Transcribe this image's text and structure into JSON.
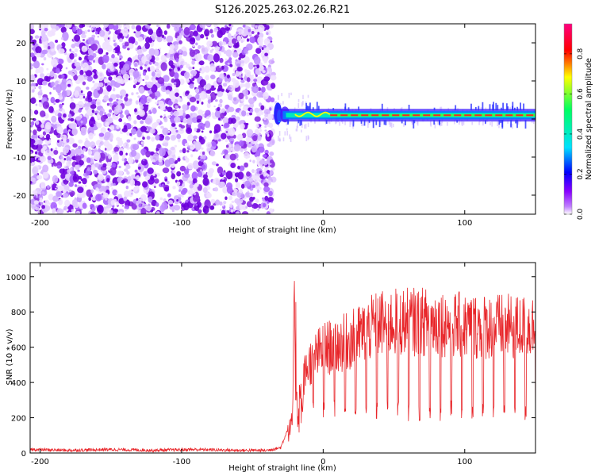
{
  "title": "S126.2025.263.02.26.R21",
  "chart_data": [
    {
      "type": "heatmap",
      "xlabel": "Height of straight line (km)",
      "ylabel": "Frequency (Hz)",
      "xlim": [
        -207,
        150
      ],
      "ylim": [
        -25,
        25
      ],
      "xticks": [
        -200,
        -100,
        0,
        100
      ],
      "yticks": [
        -20,
        -10,
        0,
        10,
        20
      ],
      "noise_region_x": [
        -207,
        -35
      ],
      "transition_x": -33,
      "signal_line_frequency_hz": 1,
      "colorbar": {
        "label": "Normalized spectral amplitude",
        "range": [
          0,
          0.95
        ],
        "ticks": [
          0.0,
          0.2,
          0.4,
          0.6,
          0.8
        ],
        "colormap": [
          "#ffffff",
          "#8800ff",
          "#0000ff",
          "#00e0ff",
          "#00ff60",
          "#ffff00",
          "#ff0000",
          "#ff0080"
        ]
      }
    },
    {
      "type": "line",
      "xlabel": "Height of straight line (km)",
      "ylabel": "SNR (10 * v/v)",
      "xlim": [
        -207,
        150
      ],
      "ylim": [
        0,
        1080
      ],
      "xticks": [
        -200,
        -100,
        0,
        100
      ],
      "yticks": [
        0,
        200,
        400,
        600,
        800,
        1000
      ],
      "color": "#e8262a",
      "series": [
        {
          "name": "SNR",
          "x": [
            -207,
            -180,
            -150,
            -120,
            -90,
            -60,
            -40,
            -30,
            -22,
            -20,
            -18,
            -15,
            -10,
            -5,
            0,
            10,
            20,
            40,
            60,
            80,
            100,
            120,
            140,
            150
          ],
          "values": [
            20,
            15,
            20,
            15,
            20,
            15,
            15,
            30,
            200,
            1020,
            300,
            480,
            600,
            650,
            700,
            720,
            760,
            870,
            880,
            880,
            850,
            850,
            840,
            850
          ]
        }
      ]
    }
  ]
}
